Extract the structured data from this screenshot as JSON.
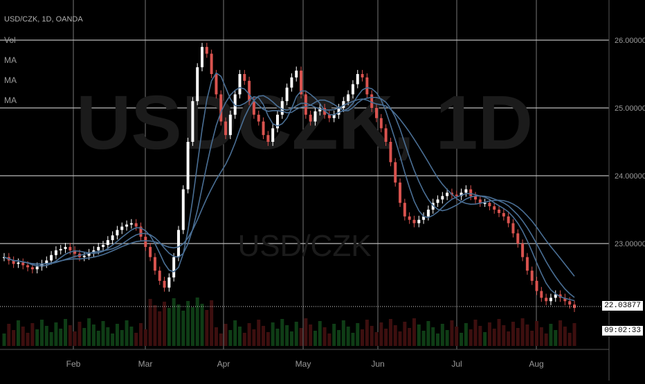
{
  "header": {
    "symbol_line": "USD/CZK, 1D, OANDA",
    "legend": [
      "Vol",
      "MA",
      "MA",
      "MA"
    ]
  },
  "watermark": {
    "big": "USDCZK, 1D",
    "small": "USD/CZK"
  },
  "price_axis": {
    "labels": [
      "26.00000",
      "25.00000",
      "24.00000",
      "23.00000"
    ],
    "last_price": "22.03877",
    "countdown": "09:02:33"
  },
  "chart_data": {
    "type": "line",
    "title": "USD/CZK, 1D, OANDA",
    "xlabel": "",
    "ylabel": "",
    "x_ticks": [
      "Feb",
      "Mar",
      "Apr",
      "May",
      "Jun",
      "Jul",
      "Aug"
    ],
    "ylim": [
      22.0,
      26.4
    ],
    "grid": true,
    "colors": {
      "up": "#ffffff",
      "down": "#d9534f",
      "ma": "#4a6f95",
      "vol_up": "#0f3d16",
      "vol_down": "#3d0f0f"
    },
    "series": [
      {
        "values": [
          22.8,
          22.75,
          22.7,
          22.72,
          22.68,
          22.65,
          22.62,
          22.66,
          22.7,
          22.75,
          22.83,
          22.9,
          22.92,
          22.95,
          22.9,
          22.85,
          22.8,
          22.82,
          22.86,
          22.9,
          22.95,
          22.98,
          23.05,
          23.12,
          23.2,
          23.25,
          23.28,
          23.3,
          23.25,
          23.1,
          22.95,
          22.8,
          22.6,
          22.45,
          22.35,
          22.5,
          22.8,
          23.2,
          23.8,
          24.5,
          25.1,
          25.6,
          25.9,
          25.8,
          25.5,
          25.2,
          24.8,
          24.6,
          24.9,
          25.2,
          25.5,
          25.4,
          25.1,
          24.9,
          24.8,
          24.6,
          24.5,
          24.7,
          24.9,
          25.1,
          25.3,
          25.45,
          25.55,
          25.2,
          24.9,
          24.8,
          24.95,
          25.0,
          24.9,
          24.85,
          24.9,
          25.0,
          25.1,
          25.2,
          25.35,
          25.5,
          25.45,
          25.2,
          25.0,
          24.85,
          24.7,
          24.5,
          24.2,
          23.9,
          23.6,
          23.4,
          23.35,
          23.3,
          23.35,
          23.4,
          23.5,
          23.6,
          23.65,
          23.7,
          23.75,
          23.72,
          23.7,
          23.75,
          23.8,
          23.7,
          23.65,
          23.6,
          23.6,
          23.55,
          23.5,
          23.45,
          23.4,
          23.3,
          23.15,
          23.0,
          22.8,
          22.6,
          22.45,
          22.3,
          22.2,
          22.15,
          22.2,
          22.25,
          22.2,
          22.15,
          22.1,
          22.05
        ]
      }
    ]
  }
}
